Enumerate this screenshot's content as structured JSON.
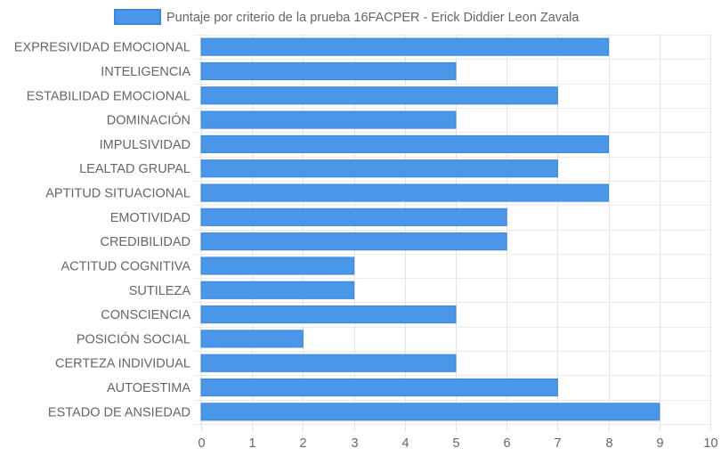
{
  "chart_data": {
    "type": "bar",
    "orientation": "horizontal",
    "categories": [
      "EXPRESIVIDAD EMOCIONAL",
      "INTELIGENCIA",
      "ESTABILIDAD EMOCIONAL",
      "DOMINACIÓN",
      "IMPULSIVIDAD",
      "LEALTAD GRUPAL",
      "APTITUD SITUACIONAL",
      "EMOTIVIDAD",
      "CREDIBILIDAD",
      "ACTITUD COGNITIVA",
      "SUTILEZA",
      "CONSCIENCIA",
      "POSICIÓN SOCIAL",
      "CERTEZA INDIVIDUAL",
      "AUTOESTIMA",
      "ESTADO DE ANSIEDAD"
    ],
    "series": [
      {
        "name": "Puntaje por criterio de la prueba 16FACPER - Erick Diddier Leon Zavala",
        "values": [
          8,
          5,
          7,
          5,
          8,
          7,
          8,
          6,
          6,
          3,
          3,
          5,
          2,
          5,
          7,
          9
        ],
        "color": "#4a97ea"
      }
    ],
    "xlim": [
      0,
      10
    ],
    "x_ticks": [
      "0",
      "1",
      "2",
      "3",
      "4",
      "5",
      "6",
      "7",
      "8",
      "9",
      "10"
    ],
    "grid": true,
    "legend_position": "top"
  }
}
